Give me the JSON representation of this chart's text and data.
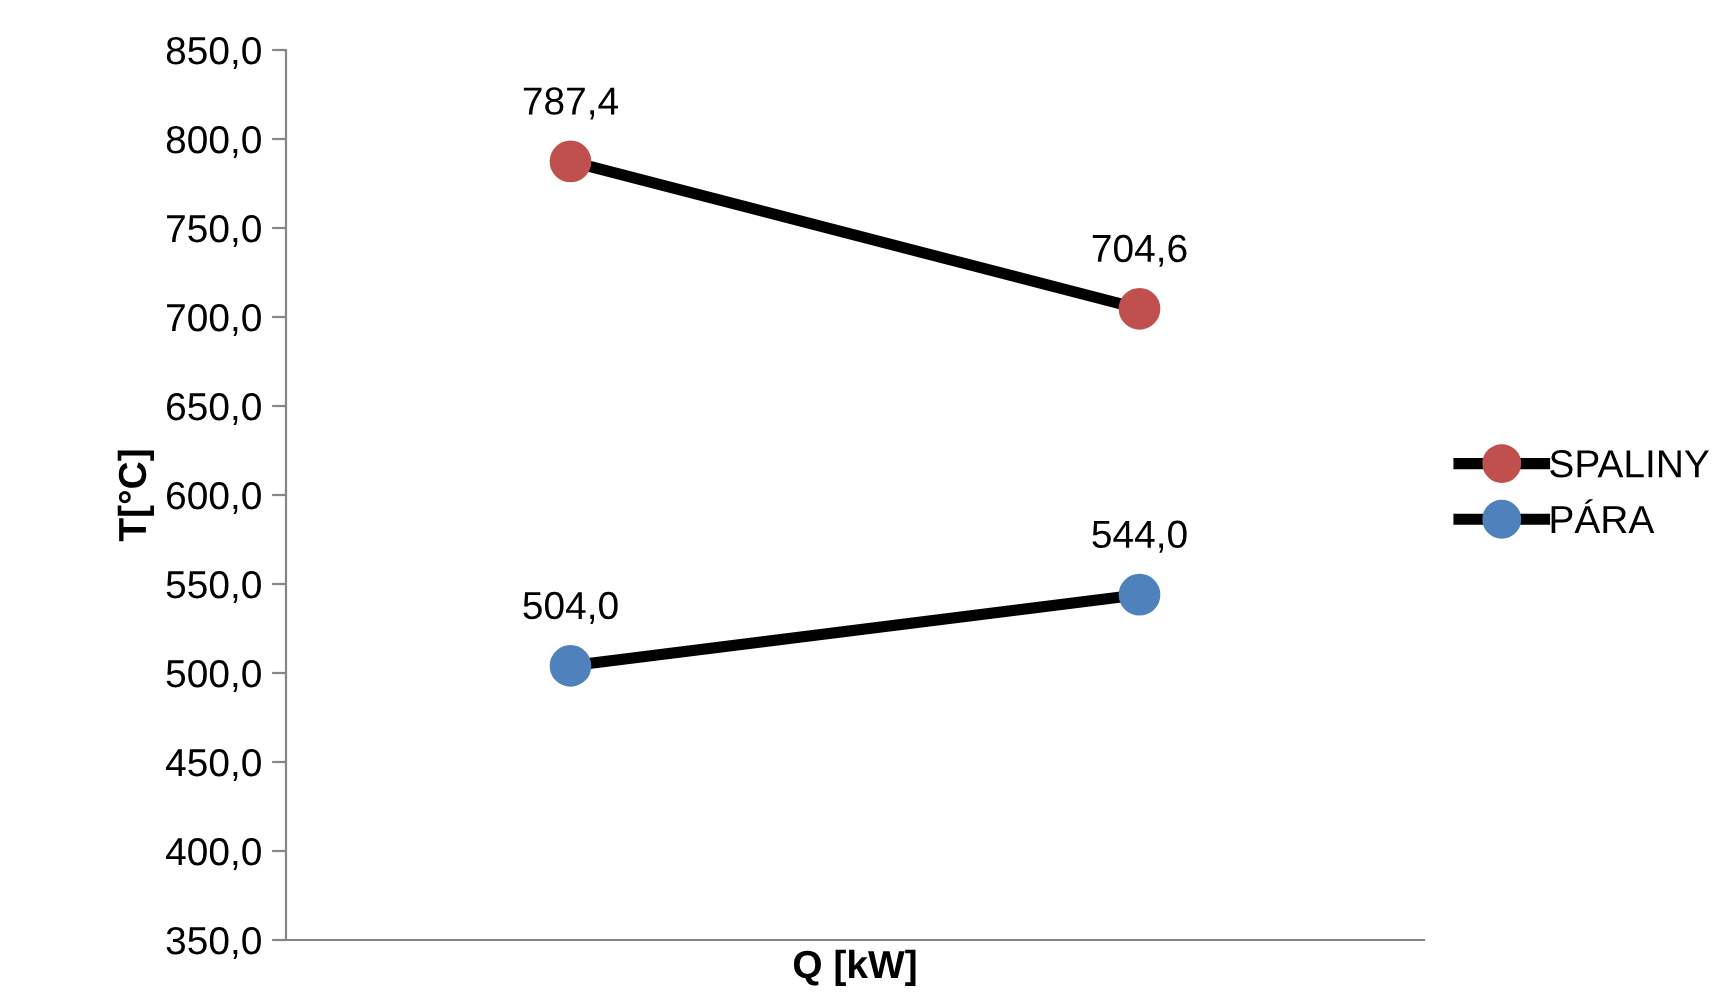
{
  "chart_data": {
    "type": "line",
    "xlabel": "Q [kW]",
    "ylabel": "T[°C]",
    "categories": [
      null,
      null
    ],
    "series": [
      {
        "name": "SPALINY",
        "color": "#c0504d",
        "values": [
          787.4,
          704.6
        ],
        "value_labels": [
          "787,4",
          "704,6"
        ]
      },
      {
        "name": "PÁRA",
        "color": "#4f81bd",
        "values": [
          504.0,
          544.0
        ],
        "value_labels": [
          "504,0",
          "544,0"
        ]
      }
    ],
    "ylim": [
      350,
      850
    ],
    "yticks": [
      {
        "value": 350,
        "label": "350,0"
      },
      {
        "value": 400,
        "label": "400,0"
      },
      {
        "value": 450,
        "label": "450,0"
      },
      {
        "value": 500,
        "label": "500,0"
      },
      {
        "value": 550,
        "label": "550,0"
      },
      {
        "value": 600,
        "label": "600,0"
      },
      {
        "value": 650,
        "label": "650,0"
      },
      {
        "value": 700,
        "label": "700,0"
      },
      {
        "value": 750,
        "label": "750,0"
      },
      {
        "value": 800,
        "label": "800,0"
      },
      {
        "value": 850,
        "label": "850,0"
      }
    ],
    "grid": false,
    "legend": "right",
    "marker": "circle",
    "line_style": "solid"
  }
}
